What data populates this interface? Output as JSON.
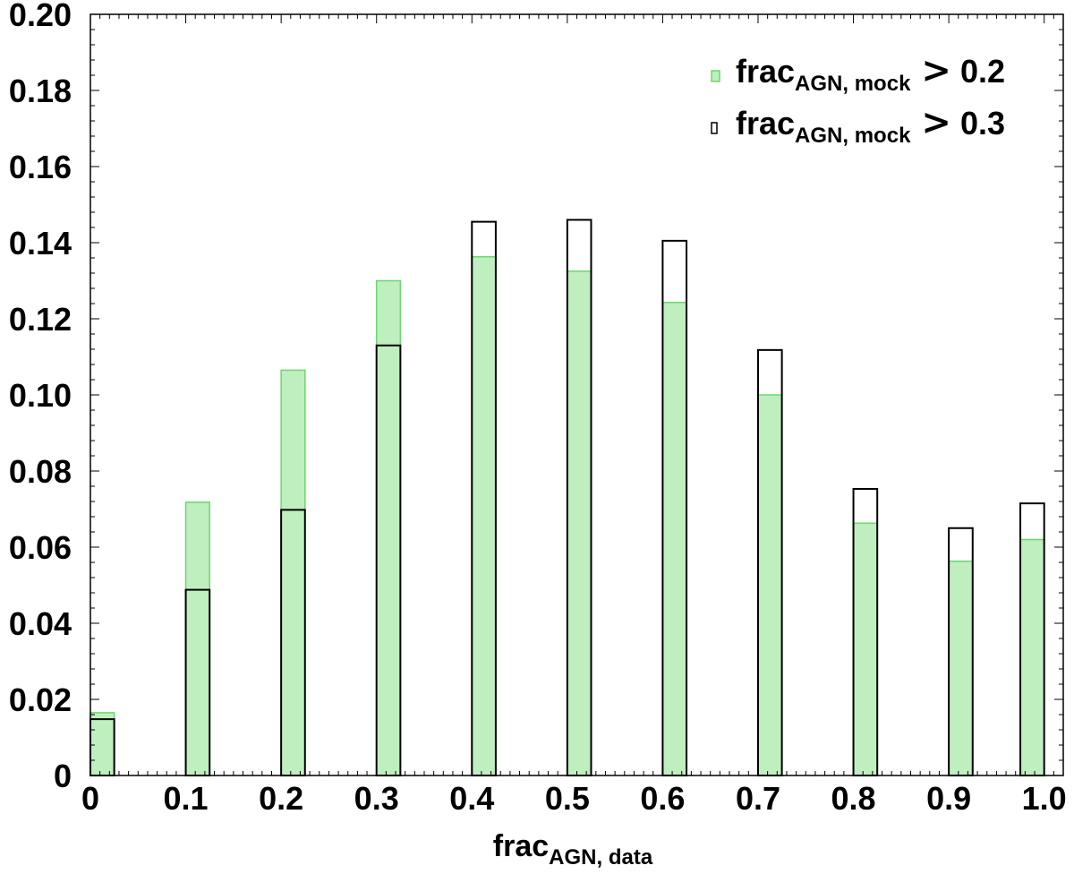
{
  "chart_data": {
    "type": "bar",
    "xlabel": {
      "main": "frac",
      "sub": "AGN, data"
    },
    "ylabel": "",
    "xlim": [
      0,
      1.02
    ],
    "ylim": [
      0,
      0.2
    ],
    "x_ticks": [
      "0",
      "0.1",
      "0.2",
      "0.3",
      "0.4",
      "0.5",
      "0.6",
      "0.7",
      "0.8",
      "0.9",
      "1.0"
    ],
    "y_ticks": [
      "0",
      "0.02",
      "0.04",
      "0.06",
      "0.08",
      "0.10",
      "0.12",
      "0.14",
      "0.16",
      "0.18",
      "0.20"
    ],
    "bin_width": 0.025,
    "bin_starts": [
      0.0,
      0.1,
      0.2,
      0.3,
      0.4,
      0.5,
      0.6,
      0.7,
      0.8,
      0.9,
      0.975
    ],
    "series": [
      {
        "name": "frac_AGN,mock > 0.2",
        "legend": {
          "main": "frac",
          "sub": "AGN, mock",
          "rel": ">",
          "value": "0.2"
        },
        "style": "filled",
        "fill_color": "#bfeebf",
        "edge_color": "#6cd86c",
        "values": [
          0.0165,
          0.0718,
          0.1065,
          0.13,
          0.1363,
          0.1325,
          0.1243,
          0.1,
          0.0663,
          0.0563,
          0.062
        ]
      },
      {
        "name": "frac_AGN,mock > 0.3",
        "legend": {
          "main": "frac",
          "sub": "AGN, mock",
          "rel": ">",
          "value": "0.3"
        },
        "style": "outline",
        "fill_color": "none",
        "edge_color": "#000000",
        "values": [
          0.0148,
          0.0488,
          0.0698,
          0.113,
          0.1455,
          0.146,
          0.1405,
          0.1118,
          0.0753,
          0.065,
          0.0715
        ]
      }
    ],
    "legend_position": "top-right",
    "grid": false
  }
}
